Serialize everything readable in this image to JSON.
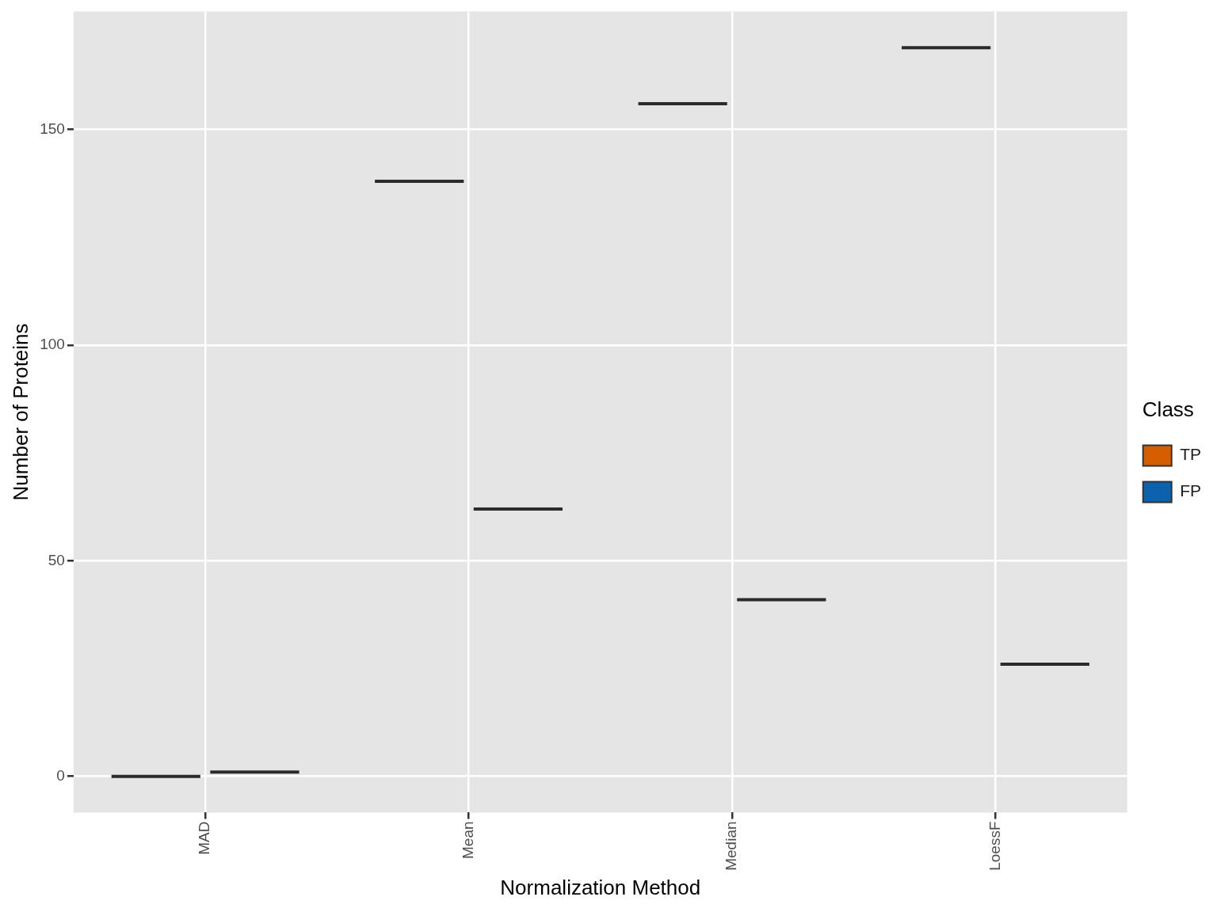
{
  "chart_data": {
    "type": "boxplot",
    "x_label": "Normalization Method",
    "y_label": "Number of Proteins",
    "legend_title": "Class",
    "categories": [
      "MAD",
      "Mean",
      "Median",
      "LoessF"
    ],
    "series": [
      {
        "name": "TP",
        "color": "#D55E00",
        "values": [
          0,
          138,
          156,
          169
        ]
      },
      {
        "name": "FP",
        "color": "#0D62AD",
        "values": [
          1,
          62,
          41,
          26
        ]
      }
    ],
    "ylim": [
      -8.4,
      177.4
    ],
    "yticks": [
      0,
      50,
      100,
      150
    ],
    "grid": true,
    "legend": "right"
  }
}
